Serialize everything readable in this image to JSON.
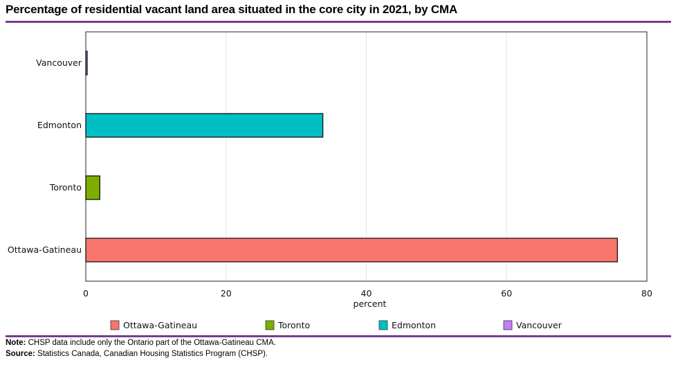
{
  "title": "Percentage of residential vacant land area situated in the core city in 2021, by CMA",
  "notes": {
    "note_label": "Note:",
    "note_text": "CHSP data include only the Ontario part of the Ottawa-Gatineau CMA.",
    "source_label": "Source:",
    "source_text": "Statistics Canada, Canadian Housing Statistics Program (CHSP)."
  },
  "chart_data": {
    "type": "bar",
    "orientation": "horizontal",
    "title": "Percentage of residential vacant land area situated in the core city in 2021, by CMA",
    "xlabel": "percent",
    "ylabel": "",
    "xlim": [
      0,
      80
    ],
    "xticks": [
      0,
      20,
      40,
      60,
      80
    ],
    "grid": true,
    "legend_position": "bottom",
    "categories": [
      "Ottawa-Gatineau",
      "Toronto",
      "Edmonton",
      "Vancouver"
    ],
    "values": [
      75.8,
      2.0,
      33.8,
      0.2
    ],
    "colors": [
      "#f8766d",
      "#7cae00",
      "#00bfc4",
      "#c77cff"
    ]
  }
}
